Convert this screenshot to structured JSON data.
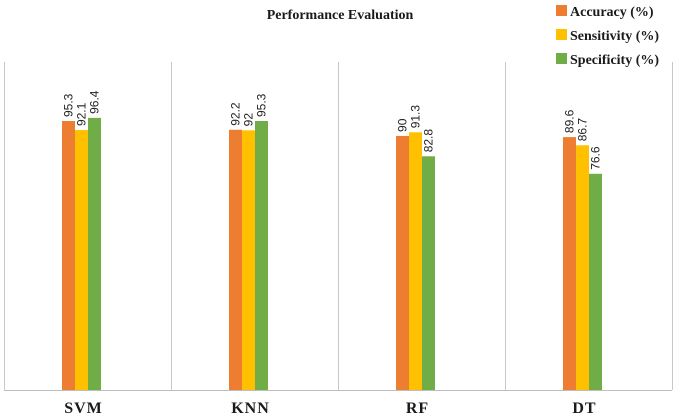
{
  "chart_data": {
    "type": "bar",
    "title": "Performance Evaluation",
    "xlabel": "",
    "ylabel": "",
    "categories": [
      "SVM",
      "KNN",
      "RF",
      "DT"
    ],
    "series": [
      {
        "name": "Accuracy (%)",
        "color": "#ED7D31",
        "values": [
          95.3,
          92.2,
          90,
          89.6
        ]
      },
      {
        "name": "Sensitivity (%)",
        "color": "#FFC000",
        "values": [
          92.1,
          92,
          91.3,
          86.7
        ]
      },
      {
        "name": "Specificity (%)",
        "color": "#70AD47",
        "values": [
          96.4,
          95.3,
          82.8,
          76.6
        ]
      }
    ],
    "ylim": [
      0,
      124
    ],
    "grid": "vertical category separators",
    "legend": "top-right",
    "data_labels": true,
    "data_label_rotation": "vertical"
  }
}
